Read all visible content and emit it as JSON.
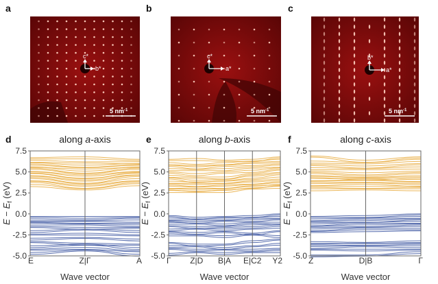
{
  "figure": {
    "panels_top": [
      {
        "label": "a",
        "axis_labels": [
          "c*",
          "b*"
        ],
        "scale_bar": "5 nm",
        "scale_sup": "-1"
      },
      {
        "label": "b",
        "axis_labels": [
          "c*",
          "a*"
        ],
        "scale_bar": "5 nm",
        "scale_sup": "-1"
      },
      {
        "label": "c",
        "axis_labels": [
          "b*",
          "a*"
        ],
        "scale_bar": "5 nm",
        "scale_sup": "-1"
      }
    ],
    "colors": {
      "conduction": "#e8a93a",
      "valence": "#3a54a0",
      "saed_bg": "#7a0a0a",
      "spot": "#ffd0c0"
    }
  },
  "chart_data": [
    {
      "type": "line",
      "label": "d",
      "title_pre": "along ",
      "title_axis": "a",
      "title_post": "-axis",
      "xlabel": "Wave vector",
      "ylabel": "E − E_f (eV)",
      "ylim": [
        -5.0,
        7.5
      ],
      "yticks": [
        "7.5",
        "5.0",
        "2.5",
        "0.0",
        "-2.5",
        "-5.0"
      ],
      "segments": 2,
      "xticks": [
        "E",
        "Z|Γ",
        "A"
      ],
      "conduction_bands": [
        [
          6.7,
          6.8,
          6.5
        ],
        [
          6.4,
          6.2,
          6.2
        ],
        [
          6.1,
          5.8,
          6.0
        ],
        [
          5.8,
          5.5,
          5.8
        ],
        [
          5.6,
          5.1,
          5.6
        ],
        [
          5.3,
          4.8,
          5.3
        ],
        [
          5.0,
          4.5,
          5.0
        ],
        [
          4.8,
          4.2,
          4.9
        ],
        [
          4.5,
          3.9,
          4.6
        ],
        [
          4.2,
          3.6,
          4.2
        ],
        [
          3.9,
          3.3,
          3.9
        ],
        [
          3.5,
          3.0,
          3.6
        ]
      ],
      "valence_bands": [
        [
          -0.3,
          -0.3,
          -0.3
        ],
        [
          -0.6,
          -0.7,
          -0.5
        ],
        [
          -0.9,
          -0.9,
          -1.0
        ],
        [
          -1.1,
          -1.2,
          -1.3
        ],
        [
          -1.5,
          -1.6,
          -1.6
        ],
        [
          -2.0,
          -1.8,
          -2.0
        ],
        [
          -2.4,
          -2.3,
          -2.5
        ],
        [
          -2.9,
          -2.8,
          -3.0
        ],
        [
          -3.3,
          -3.5,
          -3.6
        ],
        [
          -3.8,
          -3.6,
          -4.0
        ],
        [
          -4.2,
          -4.0,
          -4.4
        ],
        [
          -4.6,
          -4.3,
          -4.8
        ]
      ]
    },
    {
      "type": "line",
      "label": "e",
      "title_pre": "along ",
      "title_axis": "b",
      "title_post": "-axis",
      "xlabel": "Wave vector",
      "ylabel": "E − E_f (eV)",
      "ylim": [
        -5.0,
        7.5
      ],
      "yticks": [
        "7.5",
        "5.0",
        "2.5",
        "0.0",
        "-2.5",
        "-5.0"
      ],
      "segments": 4,
      "xticks": [
        "Γ",
        "Z|D",
        "B|A",
        "E|C2",
        "Y2"
      ],
      "conduction_bands": [
        [
          6.5,
          6.6,
          6.4,
          6.5,
          6.8
        ],
        [
          6.1,
          5.9,
          6.1,
          6.3,
          6.5
        ],
        [
          5.8,
          5.6,
          5.8,
          6.0,
          6.1
        ],
        [
          5.4,
          5.3,
          5.4,
          5.6,
          5.8
        ],
        [
          5.0,
          4.8,
          5.0,
          5.2,
          5.5
        ],
        [
          4.6,
          4.4,
          4.4,
          4.8,
          5.2
        ],
        [
          4.3,
          4.0,
          4.1,
          4.5,
          4.8
        ],
        [
          3.9,
          3.8,
          3.9,
          4.1,
          4.4
        ],
        [
          3.6,
          3.5,
          3.6,
          3.8,
          4.0
        ],
        [
          3.3,
          3.2,
          3.3,
          3.5,
          3.7
        ],
        [
          3.0,
          2.9,
          3.0,
          3.3,
          3.5
        ],
        [
          2.8,
          2.7,
          2.8,
          3.1,
          3.3
        ]
      ],
      "valence_bands": [
        [
          -0.2,
          -0.4,
          -0.3,
          -0.2,
          0.0
        ],
        [
          -0.5,
          -0.6,
          -0.5,
          -0.4,
          -0.3
        ],
        [
          -0.8,
          -0.9,
          -0.8,
          -0.7,
          -0.6
        ],
        [
          -1.0,
          -1.1,
          -1.2,
          -1.0,
          -1.0
        ],
        [
          -1.4,
          -1.5,
          -1.5,
          -1.3,
          -1.2
        ],
        [
          -1.8,
          -1.7,
          -1.8,
          -1.7,
          -1.5
        ],
        [
          -2.1,
          -2.2,
          -2.1,
          -2.3,
          -2.0
        ],
        [
          -2.4,
          -2.5,
          -2.6,
          -2.4,
          -2.6
        ],
        [
          -3.4,
          -3.6,
          -3.6,
          -3.2,
          -3.0
        ],
        [
          -3.8,
          -3.8,
          -4.0,
          -3.8,
          -3.5
        ],
        [
          -4.1,
          -4.2,
          -4.2,
          -4.2,
          -4.1
        ],
        [
          -4.7,
          -4.5,
          -4.6,
          -4.5,
          -4.4
        ]
      ]
    },
    {
      "type": "line",
      "label": "f",
      "title_pre": "along ",
      "title_axis": "c",
      "title_post": "-axis",
      "xlabel": "Wave vector",
      "ylabel": "E − E_f (eV)",
      "ylim": [
        -5.0,
        7.5
      ],
      "yticks": [
        "7.5",
        "5.0",
        "2.5",
        "0.0",
        "-2.5",
        "-5.0"
      ],
      "segments": 2,
      "xticks": [
        "Z",
        "D|B",
        "Γ"
      ],
      "conduction_bands": [
        [
          6.9,
          6.4,
          6.8
        ],
        [
          6.3,
          6.1,
          6.5
        ],
        [
          5.9,
          5.7,
          6.0
        ],
        [
          5.5,
          5.4,
          5.6
        ],
        [
          5.1,
          4.9,
          5.1
        ],
        [
          4.8,
          4.5,
          4.8
        ],
        [
          4.5,
          4.3,
          4.4
        ],
        [
          4.2,
          4.2,
          4.1
        ],
        [
          3.9,
          4.0,
          3.8
        ],
        [
          3.6,
          3.7,
          3.5
        ],
        [
          3.3,
          3.3,
          3.3
        ],
        [
          3.0,
          3.0,
          3.0
        ]
      ],
      "valence_bands": [
        [
          -0.3,
          -0.2,
          0.0
        ],
        [
          -0.6,
          -0.5,
          -0.3
        ],
        [
          -0.9,
          -0.8,
          -0.6
        ],
        [
          -1.2,
          -1.0,
          -0.9
        ],
        [
          -1.5,
          -1.3,
          -1.2
        ],
        [
          -1.8,
          -1.6,
          -1.5
        ],
        [
          -2.1,
          -1.9,
          -1.9
        ],
        [
          -3.3,
          -3.4,
          -3.2
        ],
        [
          -3.6,
          -3.5,
          -3.5
        ],
        [
          -3.9,
          -3.8,
          -3.8
        ],
        [
          -4.2,
          -4.2,
          -4.2
        ],
        [
          -4.9,
          -4.9,
          -4.5
        ]
      ]
    }
  ]
}
